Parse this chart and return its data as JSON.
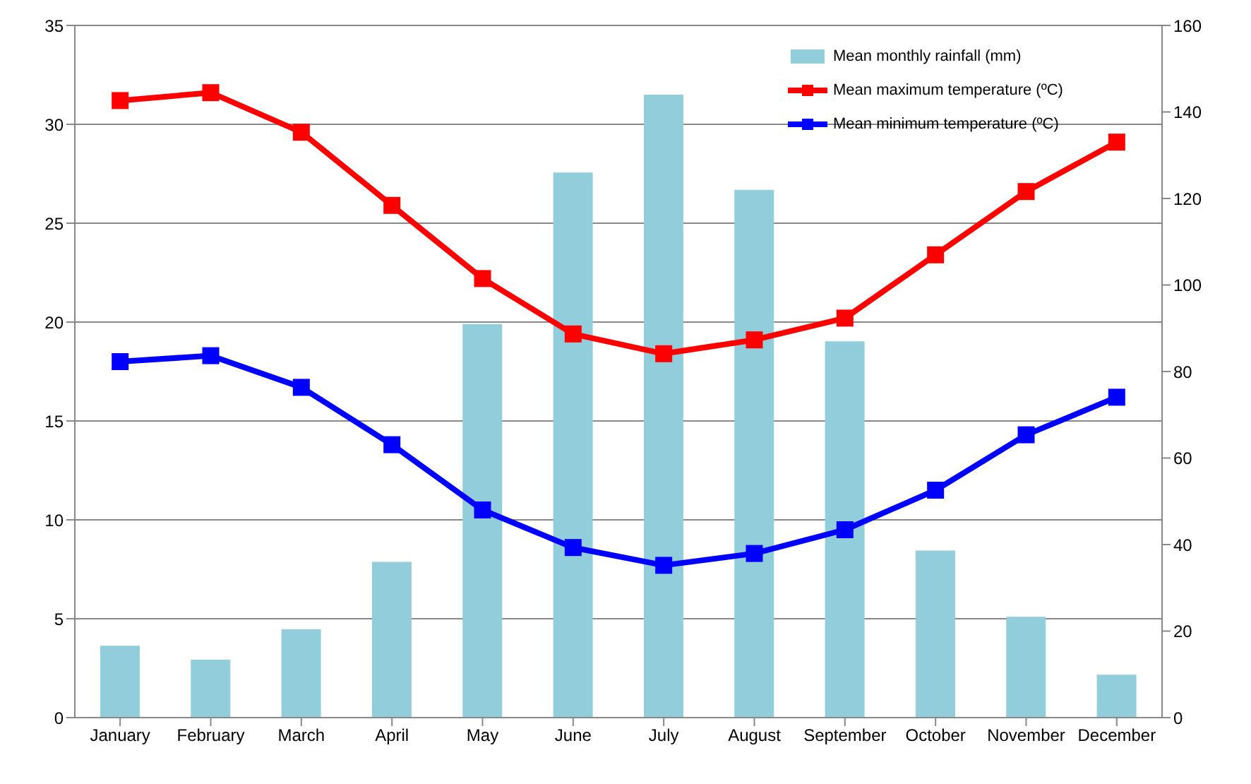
{
  "chart_data": {
    "type": "line",
    "categories": [
      "January",
      "February",
      "March",
      "April",
      "May",
      "June",
      "July",
      "August",
      "September",
      "October",
      "November",
      "December"
    ],
    "series": [
      {
        "name": "Mean monthly rainfall (mm)",
        "type": "bar",
        "axis": "y2",
        "color": "#92cddc",
        "values": [
          16.6,
          13.4,
          20.4,
          36,
          91,
          126,
          144,
          122,
          87,
          38.6,
          23.3,
          9.9
        ]
      },
      {
        "name": "Mean maximum temperature (ºC)",
        "color": "#ff0000",
        "values": [
          31.2,
          31.6,
          29.6,
          25.9,
          22.2,
          19.4,
          18.4,
          19.1,
          20.2,
          23.4,
          26.6,
          29.1
        ]
      },
      {
        "name": "Mean minimum temperature (ºC)",
        "color": "#0000ff",
        "values": [
          18.0,
          18.3,
          16.7,
          13.8,
          10.5,
          8.6,
          7.7,
          8.3,
          9.5,
          11.5,
          14.3,
          16.2
        ]
      }
    ],
    "ylim": [
      0,
      35
    ],
    "yticks": [
      0,
      5,
      10,
      15,
      20,
      25,
      30,
      35
    ],
    "y2lim": [
      0,
      160
    ],
    "y2ticks": [
      0,
      20,
      40,
      60,
      80,
      100,
      120,
      140,
      160
    ],
    "grid": "y",
    "legend": "top right",
    "marker": "square",
    "line_style": "solid"
  }
}
